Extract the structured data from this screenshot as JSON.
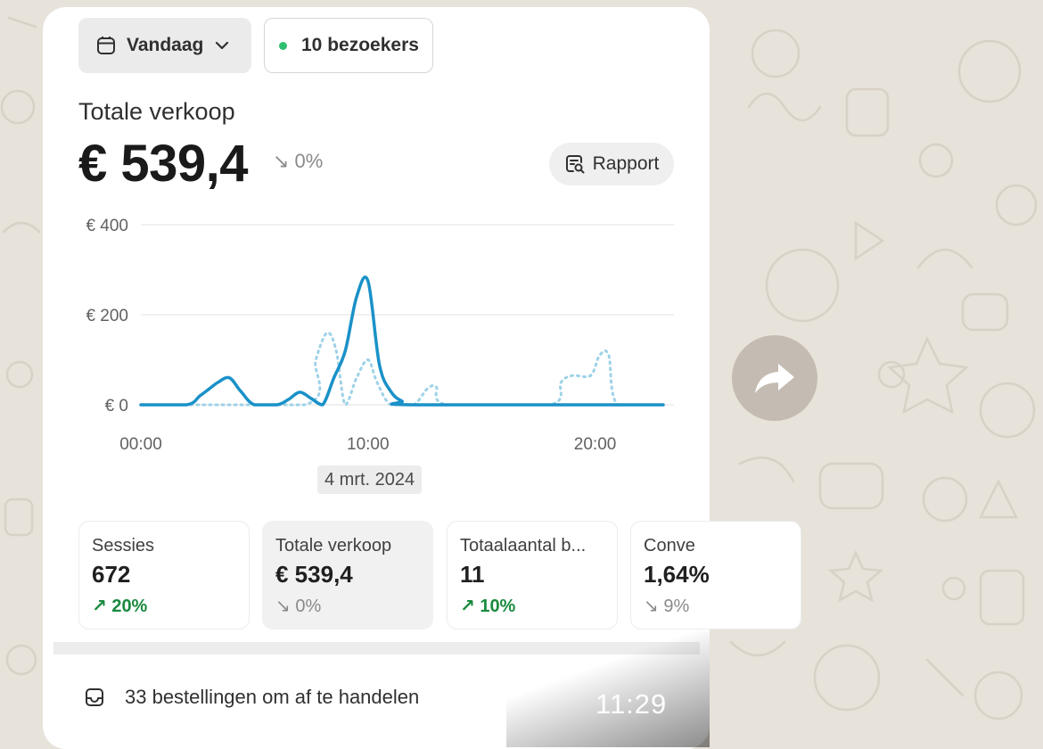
{
  "toolbar": {
    "date_label": "Vandaag",
    "date_icon": "calendar-icon",
    "visitors_label": "10 bezoekers",
    "visitors_status_color": "#2fbf71"
  },
  "summary": {
    "label": "Totale verkoop",
    "value": "€ 539,4",
    "change": "↘ 0%",
    "report_label": "Rapport",
    "report_icon": "report-search-icon"
  },
  "chart_data": {
    "type": "line",
    "xlabel": "",
    "ylabel": "",
    "y_ticks": [
      "€ 0",
      "€ 200",
      "€ 400"
    ],
    "x_ticks": [
      "00:00",
      "10:00",
      "20:00"
    ],
    "ylim": [
      0,
      400
    ],
    "xlim": [
      0,
      23
    ],
    "grid": true,
    "series": [
      {
        "style": "solid",
        "color": "#1a91c8",
        "x": [
          0,
          2,
          2.6,
          3,
          3.4,
          3.9,
          4.4,
          5,
          6,
          6.5,
          7,
          7.5,
          8,
          8.5,
          9,
          9.5,
          10,
          10.5,
          11,
          11.5,
          12,
          23
        ],
        "y": [
          0,
          0,
          20,
          35,
          50,
          60,
          30,
          0,
          0,
          12,
          28,
          14,
          0,
          60,
          120,
          240,
          275,
          90,
          30,
          8,
          0,
          0
        ]
      },
      {
        "style": "dotted",
        "color": "#9ed2e8",
        "x": [
          0,
          7.2,
          7.7,
          8.2,
          8.6,
          9,
          9.5,
          10,
          10.4,
          11,
          12,
          12.6,
          13,
          13.5,
          18,
          18.5,
          19,
          19.8,
          20.2,
          20.6,
          21,
          23
        ],
        "y": [
          0,
          0,
          100,
          160,
          120,
          0,
          60,
          100,
          50,
          0,
          0,
          35,
          40,
          0,
          0,
          50,
          65,
          65,
          110,
          110,
          0,
          0
        ]
      }
    ]
  },
  "chart_date": "4 mrt. 2024",
  "metrics": [
    {
      "label": "Sessies",
      "value": "672",
      "change": "↗ 20%",
      "direction": "up"
    },
    {
      "label": "Totale verkoop",
      "value": "€ 539,4",
      "change": "↘ 0%",
      "direction": "down"
    },
    {
      "label": "Totaalaantal b...",
      "value": "11",
      "change": "↗ 10%",
      "direction": "up"
    },
    {
      "label": "Conve",
      "value": "1,64%",
      "change": "↘ 9%",
      "direction": "down"
    }
  ],
  "orders": {
    "label": "33 bestellingen om af te handelen",
    "icon": "inbox-icon"
  },
  "message_time": "11:29",
  "forward_icon": "forward-arrow-icon"
}
